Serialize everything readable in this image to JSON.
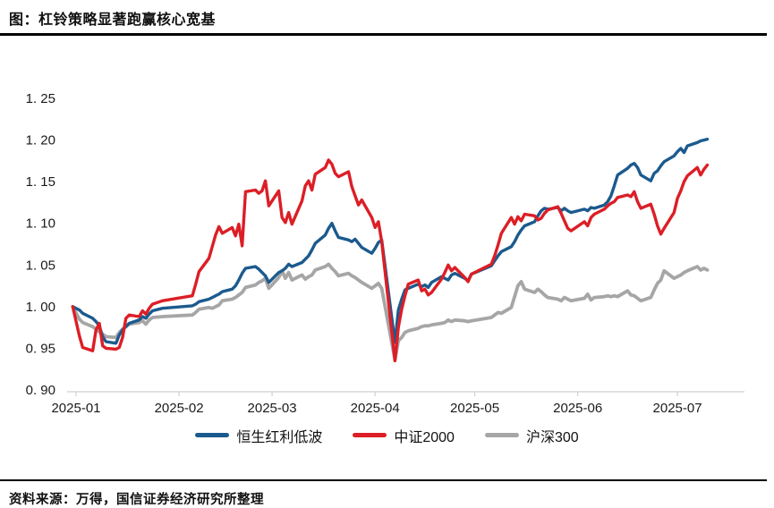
{
  "header": {
    "title": "图：杠铃策略显著跑赢核心宽基"
  },
  "footer": {
    "source": "资料来源：万得，国信证券经济研究所整理"
  },
  "chart_data": {
    "type": "line",
    "title": "杠铃策略显著跑赢核心宽基",
    "xlabel": "",
    "ylabel": "",
    "grid": false,
    "legend_position": "bottom",
    "background": "#ffffff",
    "axis_color": "#CFCFCF",
    "tick_text_color": "#1a1a1a",
    "ylim": [
      0.9,
      1.25
    ],
    "y_axis": {
      "min": 0.9,
      "max": 1.25,
      "step": 0.05,
      "tick_values": [
        1.25,
        1.2,
        1.15,
        1.1,
        1.05,
        1.0,
        0.95,
        0.9
      ],
      "tick_labels": [
        "1. 25",
        "1. 20",
        "1. 15",
        "1. 10",
        "1. 05",
        "1. 00",
        "0. 95",
        "0. 90"
      ]
    },
    "x_axis": {
      "start_date": "2024-12-31",
      "end_date": "2025-07-10",
      "tick_dates": [
        "2025-01-01",
        "2025-02-01",
        "2025-03-01",
        "2025-04-01",
        "2025-05-01",
        "2025-06-01",
        "2025-07-01"
      ],
      "tick_labels": [
        "2025-01",
        "2025-02",
        "2025-03",
        "2025-04",
        "2025-05",
        "2025-06",
        "2025-07"
      ]
    },
    "dates": [
      "2024-12-31",
      "2025-01-02",
      "2025-01-03",
      "2025-01-06",
      "2025-01-07",
      "2025-01-08",
      "2025-01-09",
      "2025-01-10",
      "2025-01-13",
      "2025-01-14",
      "2025-01-15",
      "2025-01-16",
      "2025-01-17",
      "2025-01-20",
      "2025-01-21",
      "2025-01-22",
      "2025-01-23",
      "2025-01-24",
      "2025-01-27",
      "2025-02-05",
      "2025-02-06",
      "2025-02-07",
      "2025-02-10",
      "2025-02-11",
      "2025-02-12",
      "2025-02-13",
      "2025-02-14",
      "2025-02-17",
      "2025-02-18",
      "2025-02-19",
      "2025-02-20",
      "2025-02-21",
      "2025-02-24",
      "2025-02-25",
      "2025-02-26",
      "2025-02-27",
      "2025-02-28",
      "2025-03-03",
      "2025-03-04",
      "2025-03-05",
      "2025-03-06",
      "2025-03-07",
      "2025-03-10",
      "2025-03-11",
      "2025-03-12",
      "2025-03-13",
      "2025-03-14",
      "2025-03-17",
      "2025-03-18",
      "2025-03-19",
      "2025-03-20",
      "2025-03-21",
      "2025-03-24",
      "2025-03-25",
      "2025-03-26",
      "2025-03-27",
      "2025-03-28",
      "2025-03-31",
      "2025-04-01",
      "2025-04-02",
      "2025-04-03",
      "2025-04-07",
      "2025-04-08",
      "2025-04-09",
      "2025-04-10",
      "2025-04-11",
      "2025-04-14",
      "2025-04-15",
      "2025-04-16",
      "2025-04-17",
      "2025-04-18",
      "2025-04-21",
      "2025-04-22",
      "2025-04-23",
      "2025-04-24",
      "2025-04-25",
      "2025-04-28",
      "2025-04-29",
      "2025-04-30",
      "2025-05-06",
      "2025-05-07",
      "2025-05-08",
      "2025-05-09",
      "2025-05-12",
      "2025-05-13",
      "2025-05-14",
      "2025-05-15",
      "2025-05-16",
      "2025-05-19",
      "2025-05-20",
      "2025-05-21",
      "2025-05-22",
      "2025-05-23",
      "2025-05-26",
      "2025-05-27",
      "2025-05-28",
      "2025-05-29",
      "2025-05-30",
      "2025-06-03",
      "2025-06-04",
      "2025-06-05",
      "2025-06-06",
      "2025-06-09",
      "2025-06-10",
      "2025-06-11",
      "2025-06-12",
      "2025-06-13",
      "2025-06-16",
      "2025-06-17",
      "2025-06-18",
      "2025-06-19",
      "2025-06-20",
      "2025-06-23",
      "2025-06-24",
      "2025-06-25",
      "2025-06-26",
      "2025-06-27",
      "2025-06-30",
      "2025-07-01",
      "2025-07-02",
      "2025-07-03",
      "2025-07-04",
      "2025-07-07",
      "2025-07-08",
      "2025-07-09",
      "2025-07-10"
    ],
    "series": [
      {
        "name": "恒生红利低波",
        "key": "hang-seng-dividend-low-vol",
        "color": "#1B5A8E",
        "line_width": 3.4,
        "values": [
          1.0,
          0.996,
          0.992,
          0.986,
          0.982,
          0.977,
          0.964,
          0.958,
          0.956,
          0.966,
          0.972,
          0.976,
          0.98,
          0.984,
          0.988,
          0.986,
          0.991,
          0.995,
          0.998,
          1.001,
          1.003,
          1.006,
          1.009,
          1.011,
          1.013,
          1.015,
          1.018,
          1.021,
          1.025,
          1.032,
          1.04,
          1.046,
          1.048,
          1.045,
          1.041,
          1.037,
          1.029,
          1.041,
          1.043,
          1.046,
          1.051,
          1.048,
          1.053,
          1.057,
          1.061,
          1.068,
          1.076,
          1.086,
          1.094,
          1.1,
          1.091,
          1.083,
          1.08,
          1.078,
          1.081,
          1.076,
          1.071,
          1.064,
          1.07,
          1.077,
          1.08,
          0.957,
          0.996,
          1.009,
          1.02,
          1.022,
          1.027,
          1.024,
          1.026,
          1.023,
          1.029,
          1.036,
          1.034,
          1.032,
          1.038,
          1.04,
          1.034,
          1.031,
          1.039,
          1.049,
          1.055,
          1.061,
          1.066,
          1.072,
          1.078,
          1.086,
          1.092,
          1.097,
          1.102,
          1.109,
          1.115,
          1.118,
          1.117,
          1.119,
          1.115,
          1.118,
          1.115,
          1.113,
          1.117,
          1.115,
          1.119,
          1.118,
          1.122,
          1.126,
          1.133,
          1.145,
          1.158,
          1.166,
          1.17,
          1.172,
          1.167,
          1.158,
          1.151,
          1.16,
          1.163,
          1.169,
          1.174,
          1.181,
          1.186,
          1.19,
          1.185,
          1.193,
          1.197,
          1.199,
          1.2,
          1.201
        ]
      },
      {
        "name": "中证2000",
        "key": "csi-2000",
        "color": "#DC1E26",
        "line_width": 3.4,
        "values": [
          1.0,
          0.965,
          0.951,
          0.947,
          0.972,
          0.98,
          0.953,
          0.95,
          0.949,
          0.951,
          0.963,
          0.986,
          0.99,
          0.988,
          0.995,
          0.991,
          0.998,
          1.003,
          1.007,
          1.013,
          1.027,
          1.042,
          1.058,
          1.072,
          1.086,
          1.096,
          1.088,
          1.095,
          1.085,
          1.099,
          1.073,
          1.138,
          1.14,
          1.136,
          1.139,
          1.151,
          1.121,
          1.139,
          1.107,
          1.101,
          1.113,
          1.099,
          1.127,
          1.145,
          1.151,
          1.14,
          1.159,
          1.167,
          1.176,
          1.171,
          1.16,
          1.156,
          1.162,
          1.144,
          1.133,
          1.122,
          1.128,
          1.107,
          1.095,
          1.102,
          1.078,
          0.935,
          0.975,
          0.997,
          1.013,
          1.027,
          1.032,
          1.019,
          1.021,
          1.014,
          1.017,
          1.033,
          1.041,
          1.05,
          1.043,
          1.047,
          1.035,
          1.03,
          1.039,
          1.051,
          1.061,
          1.074,
          1.088,
          1.107,
          1.099,
          1.108,
          1.103,
          1.111,
          1.109,
          1.104,
          1.106,
          1.112,
          1.116,
          1.12,
          1.112,
          1.103,
          1.094,
          1.091,
          1.102,
          1.097,
          1.107,
          1.111,
          1.117,
          1.121,
          1.124,
          1.126,
          1.131,
          1.134,
          1.132,
          1.138,
          1.126,
          1.118,
          1.123,
          1.111,
          1.097,
          1.087,
          1.094,
          1.113,
          1.13,
          1.139,
          1.15,
          1.157,
          1.167,
          1.158,
          1.165,
          1.17
        ]
      },
      {
        "name": "沪深300",
        "key": "csi-300",
        "color": "#A6A6A6",
        "line_width": 3.8,
        "values": [
          1.0,
          0.985,
          0.981,
          0.976,
          0.973,
          0.97,
          0.967,
          0.964,
          0.963,
          0.969,
          0.973,
          0.976,
          0.979,
          0.981,
          0.983,
          0.979,
          0.984,
          0.987,
          0.988,
          0.99,
          0.993,
          0.997,
          0.999,
          0.998,
          1.0,
          1.002,
          1.007,
          1.009,
          1.011,
          1.014,
          1.017,
          1.023,
          1.026,
          1.029,
          1.031,
          1.034,
          1.022,
          1.035,
          1.043,
          1.034,
          1.041,
          1.032,
          1.038,
          1.033,
          1.036,
          1.038,
          1.044,
          1.048,
          1.051,
          1.046,
          1.042,
          1.037,
          1.04,
          1.037,
          1.035,
          1.032,
          1.029,
          1.022,
          1.025,
          1.028,
          1.022,
          0.936,
          0.959,
          0.963,
          0.969,
          0.971,
          0.974,
          0.976,
          0.977,
          0.977,
          0.978,
          0.98,
          0.981,
          0.984,
          0.982,
          0.984,
          0.983,
          0.982,
          0.983,
          0.987,
          0.99,
          0.993,
          0.992,
          0.999,
          1.012,
          1.025,
          1.03,
          1.021,
          1.017,
          1.021,
          1.018,
          1.014,
          1.011,
          1.009,
          1.007,
          1.011,
          1.009,
          1.007,
          1.01,
          1.015,
          1.008,
          1.011,
          1.012,
          1.013,
          1.012,
          1.013,
          1.012,
          1.019,
          1.014,
          1.013,
          1.01,
          1.007,
          1.011,
          1.02,
          1.028,
          1.032,
          1.043,
          1.034,
          1.036,
          1.038,
          1.041,
          1.043,
          1.048,
          1.044,
          1.046,
          1.044
        ]
      }
    ]
  }
}
